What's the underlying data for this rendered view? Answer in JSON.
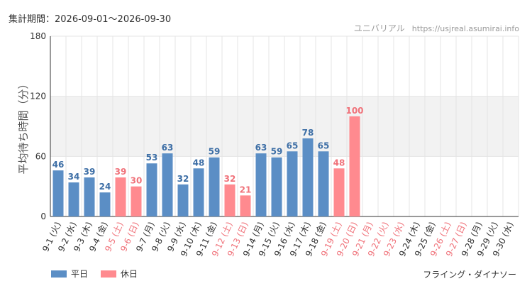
{
  "header": {
    "period": "集計期間：2026-09-01～2026-09-30",
    "watermark_name": "ユニバリアル",
    "watermark_url": "https://usjreal.asumirai.info"
  },
  "legend": [
    {
      "label": "平日",
      "color": "#5b8ec5"
    },
    {
      "label": "休日",
      "color": "#ff8a8f"
    }
  ],
  "subject": "フライング・ダイナソー",
  "colors": {
    "weekday": "#5b8ec5",
    "weekday_label": "#3e6fa6",
    "holiday": "#ff8a8f",
    "holiday_label": "#f0727a",
    "band": "#f2f2f2",
    "grid": "#e4e4e4",
    "axis": "#333333"
  },
  "chart_data": {
    "type": "bar",
    "ylabel": "平均待ち時間（分）",
    "ylim": [
      0,
      180
    ],
    "yticks": [
      0,
      60,
      120,
      180
    ],
    "shaded_band": [
      60,
      120
    ],
    "grid": true,
    "legend_position": "bottom-left",
    "categories": [
      "9-1 (火)",
      "9-2 (水)",
      "9-3 (木)",
      "9-4 (金)",
      "9-5 (土)",
      "9-6 (日)",
      "9-7 (月)",
      "9-8 (火)",
      "9-9 (水)",
      "9-10 (木)",
      "9-11 (金)",
      "9-12 (土)",
      "9-13 (日)",
      "9-14 (月)",
      "9-15 (火)",
      "9-16 (水)",
      "9-17 (木)",
      "9-18 (金)",
      "9-19 (土)",
      "9-20 (日)",
      "9-21 (月)",
      "9-22 (火)",
      "9-23 (水)",
      "9-24 (木)",
      "9-25 (金)",
      "9-26 (土)",
      "9-27 (日)",
      "9-28 (月)",
      "9-29 (火)",
      "9-30 (水)"
    ],
    "day_type": [
      "平日",
      "平日",
      "平日",
      "平日",
      "休日",
      "休日",
      "平日",
      "平日",
      "平日",
      "平日",
      "平日",
      "休日",
      "休日",
      "平日",
      "平日",
      "平日",
      "平日",
      "平日",
      "休日",
      "休日",
      "休日",
      "休日",
      "休日",
      "平日",
      "平日",
      "休日",
      "休日",
      "平日",
      "平日",
      "平日"
    ],
    "values": [
      46,
      34,
      39,
      24,
      39,
      30,
      53,
      63,
      32,
      48,
      59,
      32,
      21,
      63,
      59,
      65,
      78,
      65,
      48,
      100,
      null,
      null,
      null,
      null,
      null,
      null,
      null,
      null,
      null,
      null
    ]
  }
}
